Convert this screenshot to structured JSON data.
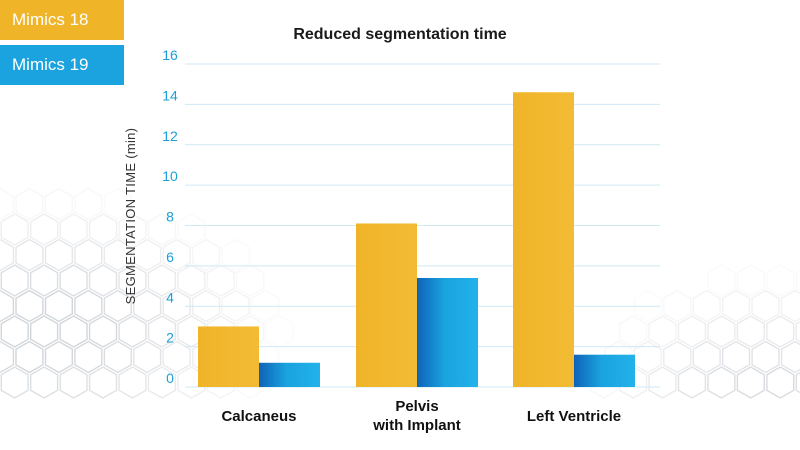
{
  "chart_data": {
    "type": "bar",
    "title": "Reduced segmentation time",
    "ylabel": "SEGMENTATION TIME (min)",
    "xlabel": "",
    "ylim": [
      0,
      16
    ],
    "yticks": [
      0,
      2,
      4,
      6,
      8,
      10,
      12,
      14,
      16
    ],
    "categories": [
      [
        "Calcaneus"
      ],
      [
        "Pelvis",
        "with Implant"
      ],
      [
        "Left Ventricle"
      ]
    ],
    "series": [
      {
        "name": "Mimics 18",
        "color": "#f0b429",
        "values": [
          3.0,
          8.1,
          14.6
        ]
      },
      {
        "name": "Mimics 19",
        "color": "#1aa3df",
        "values": [
          1.2,
          5.4,
          1.6
        ]
      }
    ],
    "grid": true,
    "legend": "top-left"
  }
}
